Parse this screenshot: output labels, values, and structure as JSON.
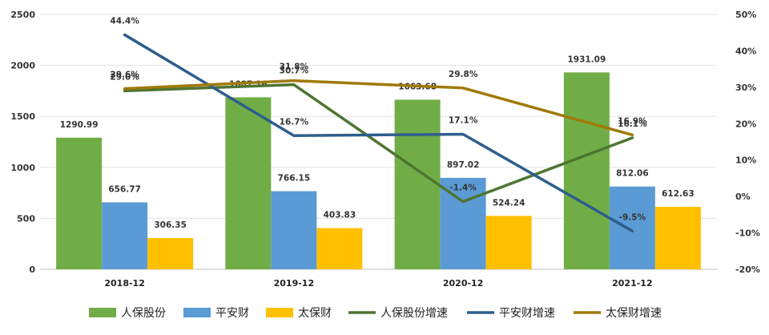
{
  "chart_data": {
    "type": "bar",
    "categories": [
      "2018-12",
      "2019-12",
      "2020-12",
      "2021-12"
    ],
    "bar_series": [
      {
        "name": "人保股份",
        "color": "#70AD47",
        "values": [
          1290.99,
          1687.16,
          1663.68,
          1931.09
        ],
        "labels": [
          "1290.99",
          "1687.16",
          "1663.68",
          "1931.09"
        ]
      },
      {
        "name": "平安财",
        "color": "#5B9BD5",
        "values": [
          656.77,
          766.15,
          897.02,
          812.06
        ],
        "labels": [
          "656.77",
          "766.15",
          "897.02",
          "812.06"
        ]
      },
      {
        "name": "太保财",
        "color": "#FFC000",
        "values": [
          306.35,
          403.83,
          524.24,
          612.63
        ],
        "labels": [
          "306.35",
          "403.83",
          "524.24",
          "612.63"
        ]
      }
    ],
    "line_series": [
      {
        "name": "人保股份增速",
        "color": "#4E7532",
        "values": [
          29.0,
          30.7,
          -1.4,
          16.1
        ],
        "labels": [
          "29.0%",
          "30.7%",
          "-1.4%",
          "16.1%"
        ]
      },
      {
        "name": "平安财增速",
        "color": "#2E5E8C",
        "values": [
          44.4,
          16.7,
          17.1,
          -9.5
        ],
        "labels": [
          "44.4%",
          "16.7%",
          "17.1%",
          "-9.5%"
        ]
      },
      {
        "name": "太保财增速",
        "color": "#A07A08",
        "values": [
          29.6,
          31.8,
          29.8,
          16.9
        ],
        "labels": [
          "29.6%",
          "31.8%",
          "29.8%",
          "16.9%"
        ]
      }
    ],
    "ylim_left": [
      0,
      2500
    ],
    "yticks_left": [
      "0",
      "500",
      "1000",
      "1500",
      "2000",
      "2500"
    ],
    "ylim_right": [
      -20,
      50
    ],
    "yticks_right": [
      "-20%",
      "-10%",
      "0%",
      "10%",
      "20%",
      "30%",
      "40%",
      "50%"
    ],
    "grid": true,
    "legend_position": "bottom"
  }
}
